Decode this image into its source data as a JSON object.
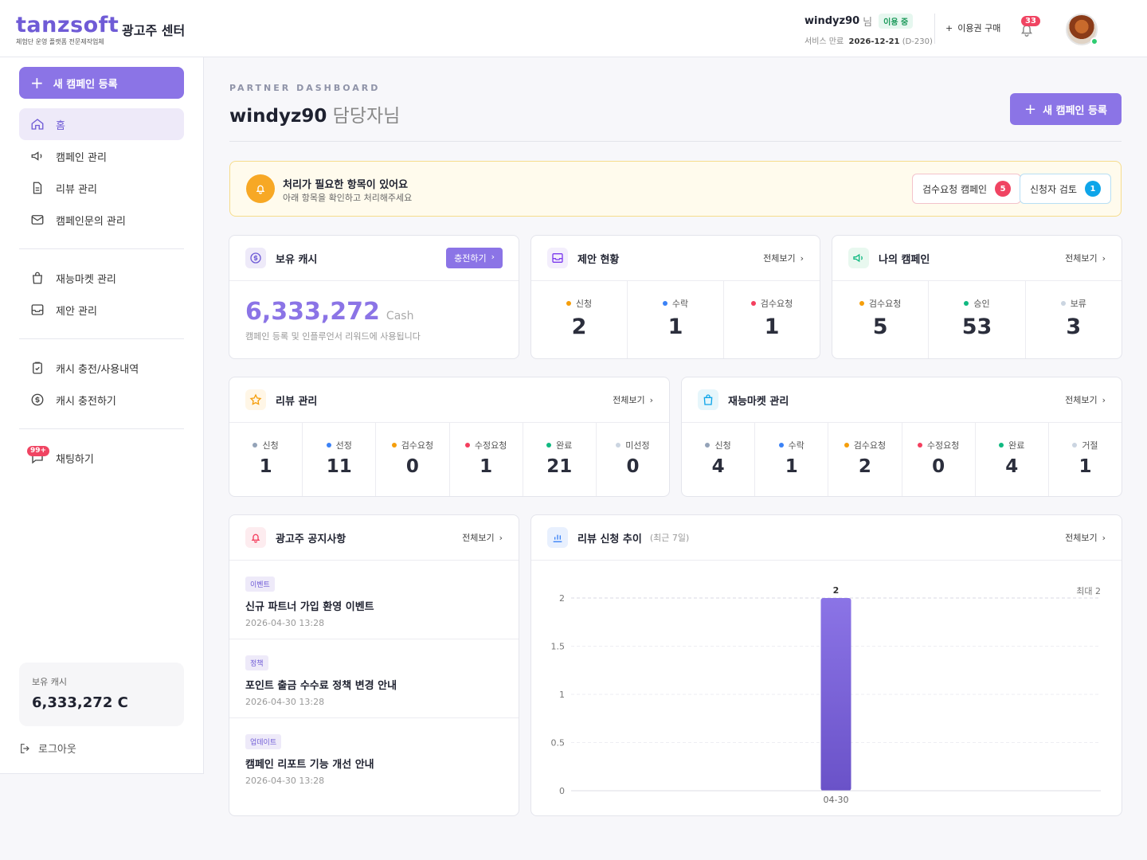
{
  "brand": {
    "logo": "tanzsoft",
    "tagline": "체험단 운영 플랫폼 전문제작업체",
    "center": "광고주 센터"
  },
  "user": {
    "name": "windyz90",
    "suffix": "님",
    "status": "이용 중",
    "service_label": "서비스 만료",
    "service_date": "2026-12-21",
    "dday": "(D-230)"
  },
  "top": {
    "buy": "이용권 구매",
    "notif_count": "33"
  },
  "sidebar": {
    "new_campaign": "새 캠페인 등록",
    "items": [
      {
        "label": "홈"
      },
      {
        "label": "캠페인 관리"
      },
      {
        "label": "리뷰 관리"
      },
      {
        "label": "캠페인문의 관리"
      },
      {
        "label": "재능마켓 관리"
      },
      {
        "label": "제안 관리"
      },
      {
        "label": "캐시 충전/사용내역"
      },
      {
        "label": "캐시 충전하기"
      },
      {
        "label": "채팅하기",
        "badge": "99+"
      }
    ],
    "cash_label": "보유 캐시",
    "cash_value": "6,333,272 C",
    "logout": "로그아웃"
  },
  "header": {
    "eyebrow": "PARTNER DASHBOARD",
    "title_name": "windyz90",
    "title_suffix": " 담당자님",
    "new_campaign": "새 캠페인 등록"
  },
  "alert": {
    "title": "처리가 필요한 항목이 있어요",
    "sub": "아래 항목을 확인하고 처리해주세요",
    "btn_review": "검수요청 캠페인",
    "btn_review_count": "5",
    "btn_applicant": "신청자 검토",
    "btn_applicant_count": "1"
  },
  "view_all": "전체보기",
  "cash_card": {
    "title": "보유 캐시",
    "charge": "충전하기",
    "value": "6,333,272",
    "unit": "Cash",
    "desc": "캠페인 등록 및 인플루언서 리워드에 사용됩니다"
  },
  "proposal": {
    "title": "제안 현황",
    "stats": [
      {
        "label": "신청",
        "value": "2",
        "color": "#f59e0b"
      },
      {
        "label": "수락",
        "value": "1",
        "color": "#3b82f6"
      },
      {
        "label": "검수요청",
        "value": "1",
        "color": "#f43f5e"
      }
    ]
  },
  "my_campaign": {
    "title": "나의 캠페인",
    "stats": [
      {
        "label": "검수요청",
        "value": "5",
        "color": "#f59e0b"
      },
      {
        "label": "승인",
        "value": "53",
        "color": "#10b981"
      },
      {
        "label": "보류",
        "value": "3",
        "color": "#cbd5e1"
      }
    ]
  },
  "review": {
    "title": "리뷰 관리",
    "stats": [
      {
        "label": "신청",
        "value": "1",
        "color": "#94a3b8"
      },
      {
        "label": "선정",
        "value": "11",
        "color": "#3b82f6"
      },
      {
        "label": "검수요청",
        "value": "0",
        "color": "#f59e0b"
      },
      {
        "label": "수정요청",
        "value": "1",
        "color": "#f43f5e"
      },
      {
        "label": "완료",
        "value": "21",
        "color": "#10b981"
      },
      {
        "label": "미선정",
        "value": "0",
        "color": "#cbd5e1"
      }
    ]
  },
  "market": {
    "title": "재능마켓 관리",
    "stats": [
      {
        "label": "신청",
        "value": "4",
        "color": "#94a3b8"
      },
      {
        "label": "수락",
        "value": "1",
        "color": "#3b82f6"
      },
      {
        "label": "검수요청",
        "value": "2",
        "color": "#f59e0b"
      },
      {
        "label": "수정요청",
        "value": "0",
        "color": "#f43f5e"
      },
      {
        "label": "완료",
        "value": "4",
        "color": "#10b981"
      },
      {
        "label": "거절",
        "value": "1",
        "color": "#cbd5e1"
      }
    ]
  },
  "notices": {
    "title": "광고주 공지사항",
    "items": [
      {
        "tag": "이벤트",
        "title": "신규 파트너 가입 환영 이벤트",
        "date": "2026-04-30 13:28"
      },
      {
        "tag": "정책",
        "title": "포인트 출금 수수료 정책 변경 안내",
        "date": "2026-04-30 13:28"
      },
      {
        "tag": "업데이트",
        "title": "캠페인 리포트 기능 개선 안내",
        "date": "2026-04-30 13:28"
      }
    ]
  },
  "trend": {
    "title": "리뷰 신청 추이",
    "sub": "(최근 7일)"
  },
  "chart_data": {
    "type": "bar",
    "categories": [
      "04-30"
    ],
    "values": [
      2
    ],
    "ylim": [
      0,
      2
    ],
    "yticks": [
      "0",
      "0.5",
      "1",
      "1.5",
      "2"
    ],
    "max_label": "최대 2",
    "data_labels": [
      "2"
    ],
    "color": "#7c62dc"
  }
}
